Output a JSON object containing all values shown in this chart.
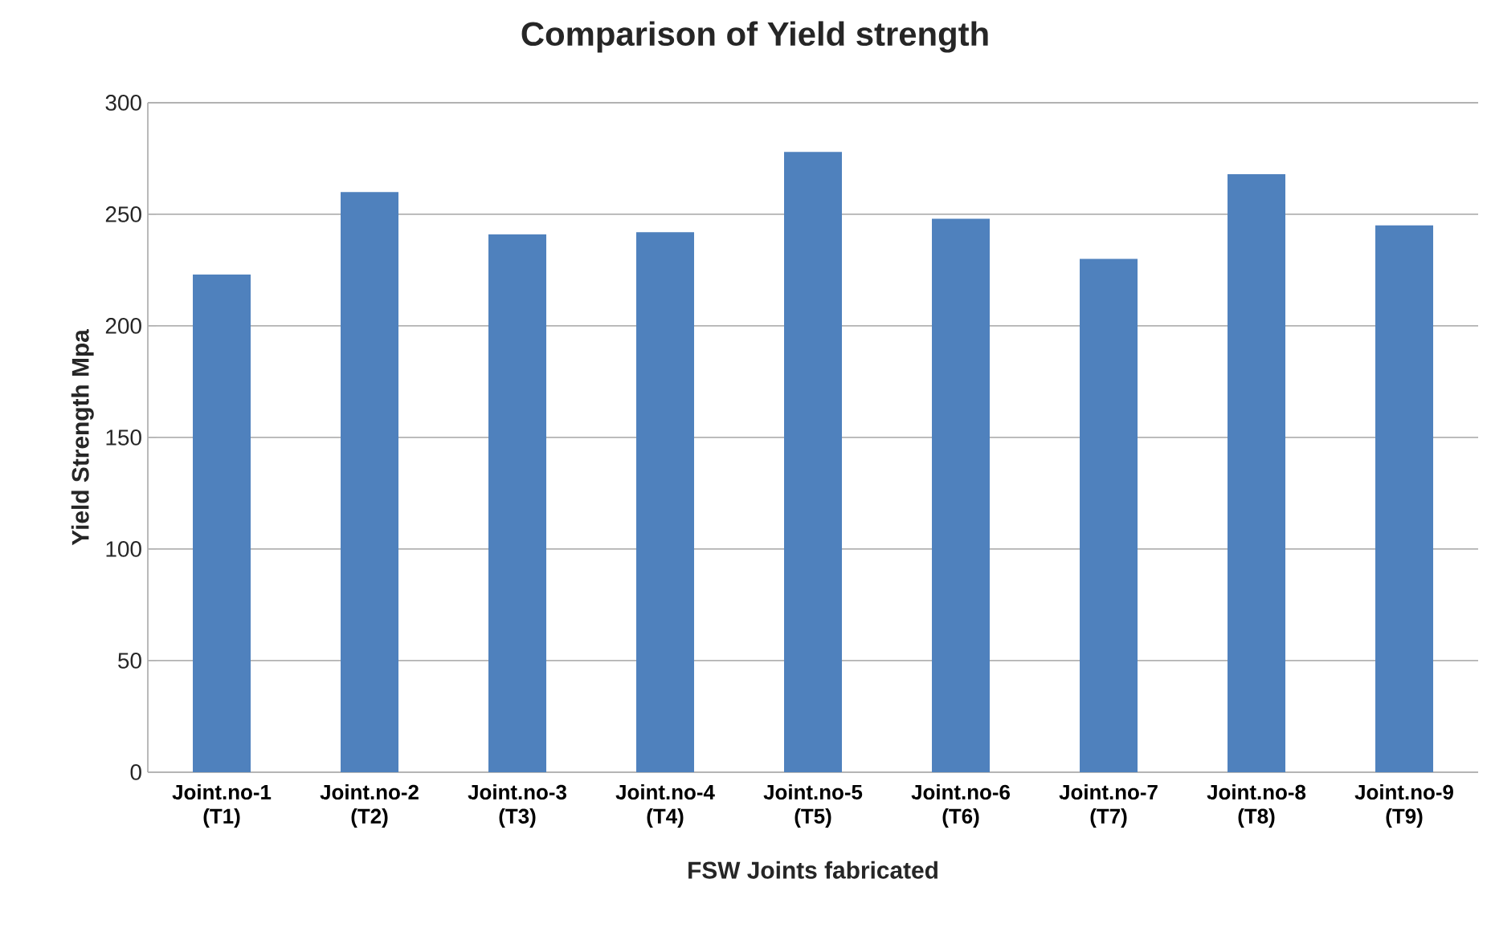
{
  "chart_data": {
    "type": "bar",
    "title": "Comparison of Yield strength",
    "xlabel": "FSW Joints fabricated",
    "ylabel": "Yield Strength Mpa",
    "categories": [
      "Joint.no-1 (T1)",
      "Joint.no-2 (T2)",
      "Joint.no-3 (T3)",
      "Joint.no-4 (T4)",
      "Joint.no-5 (T5)",
      "Joint.no-6 (T6)",
      "Joint.no-7 (T7)",
      "Joint.no-8 (T8)",
      "Joint.no-9 (T9)"
    ],
    "values": [
      223,
      260,
      241,
      242,
      278,
      248,
      230,
      268,
      245
    ],
    "color": "#4f81bd",
    "ylim": [
      0,
      300
    ],
    "yticks": [
      0,
      50,
      100,
      150,
      200,
      250,
      300
    ],
    "grid": "y"
  }
}
